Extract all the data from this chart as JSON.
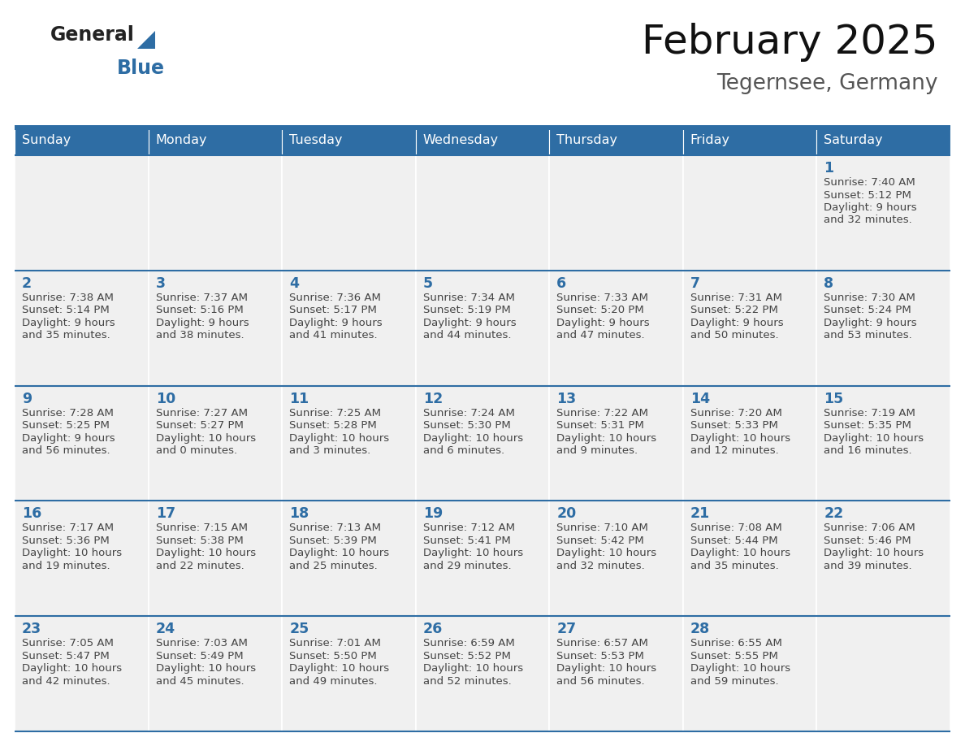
{
  "title": "February 2025",
  "subtitle": "Tegernsee, Germany",
  "days_of_week": [
    "Sunday",
    "Monday",
    "Tuesday",
    "Wednesday",
    "Thursday",
    "Friday",
    "Saturday"
  ],
  "header_bg": "#2E6DA4",
  "header_text": "#FFFFFF",
  "cell_bg": "#F0F0F0",
  "border_color": "#2E6DA4",
  "day_num_color": "#2E6DA4",
  "info_color": "#444444",
  "logo_general_color": "#222222",
  "logo_blue_color": "#2E6DA4",
  "title_color": "#111111",
  "subtitle_color": "#555555",
  "calendar": [
    [
      null,
      null,
      null,
      null,
      null,
      null,
      {
        "day": 1,
        "sunrise": "7:40 AM",
        "sunset": "5:12 PM",
        "daylight": "9 hours",
        "daylight2": "and 32 minutes."
      }
    ],
    [
      {
        "day": 2,
        "sunrise": "7:38 AM",
        "sunset": "5:14 PM",
        "daylight": "9 hours",
        "daylight2": "and 35 minutes."
      },
      {
        "day": 3,
        "sunrise": "7:37 AM",
        "sunset": "5:16 PM",
        "daylight": "9 hours",
        "daylight2": "and 38 minutes."
      },
      {
        "day": 4,
        "sunrise": "7:36 AM",
        "sunset": "5:17 PM",
        "daylight": "9 hours",
        "daylight2": "and 41 minutes."
      },
      {
        "day": 5,
        "sunrise": "7:34 AM",
        "sunset": "5:19 PM",
        "daylight": "9 hours",
        "daylight2": "and 44 minutes."
      },
      {
        "day": 6,
        "sunrise": "7:33 AM",
        "sunset": "5:20 PM",
        "daylight": "9 hours",
        "daylight2": "and 47 minutes."
      },
      {
        "day": 7,
        "sunrise": "7:31 AM",
        "sunset": "5:22 PM",
        "daylight": "9 hours",
        "daylight2": "and 50 minutes."
      },
      {
        "day": 8,
        "sunrise": "7:30 AM",
        "sunset": "5:24 PM",
        "daylight": "9 hours",
        "daylight2": "and 53 minutes."
      }
    ],
    [
      {
        "day": 9,
        "sunrise": "7:28 AM",
        "sunset": "5:25 PM",
        "daylight": "9 hours",
        "daylight2": "and 56 minutes."
      },
      {
        "day": 10,
        "sunrise": "7:27 AM",
        "sunset": "5:27 PM",
        "daylight": "10 hours",
        "daylight2": "and 0 minutes."
      },
      {
        "day": 11,
        "sunrise": "7:25 AM",
        "sunset": "5:28 PM",
        "daylight": "10 hours",
        "daylight2": "and 3 minutes."
      },
      {
        "day": 12,
        "sunrise": "7:24 AM",
        "sunset": "5:30 PM",
        "daylight": "10 hours",
        "daylight2": "and 6 minutes."
      },
      {
        "day": 13,
        "sunrise": "7:22 AM",
        "sunset": "5:31 PM",
        "daylight": "10 hours",
        "daylight2": "and 9 minutes."
      },
      {
        "day": 14,
        "sunrise": "7:20 AM",
        "sunset": "5:33 PM",
        "daylight": "10 hours",
        "daylight2": "and 12 minutes."
      },
      {
        "day": 15,
        "sunrise": "7:19 AM",
        "sunset": "5:35 PM",
        "daylight": "10 hours",
        "daylight2": "and 16 minutes."
      }
    ],
    [
      {
        "day": 16,
        "sunrise": "7:17 AM",
        "sunset": "5:36 PM",
        "daylight": "10 hours",
        "daylight2": "and 19 minutes."
      },
      {
        "day": 17,
        "sunrise": "7:15 AM",
        "sunset": "5:38 PM",
        "daylight": "10 hours",
        "daylight2": "and 22 minutes."
      },
      {
        "day": 18,
        "sunrise": "7:13 AM",
        "sunset": "5:39 PM",
        "daylight": "10 hours",
        "daylight2": "and 25 minutes."
      },
      {
        "day": 19,
        "sunrise": "7:12 AM",
        "sunset": "5:41 PM",
        "daylight": "10 hours",
        "daylight2": "and 29 minutes."
      },
      {
        "day": 20,
        "sunrise": "7:10 AM",
        "sunset": "5:42 PM",
        "daylight": "10 hours",
        "daylight2": "and 32 minutes."
      },
      {
        "day": 21,
        "sunrise": "7:08 AM",
        "sunset": "5:44 PM",
        "daylight": "10 hours",
        "daylight2": "and 35 minutes."
      },
      {
        "day": 22,
        "sunrise": "7:06 AM",
        "sunset": "5:46 PM",
        "daylight": "10 hours",
        "daylight2": "and 39 minutes."
      }
    ],
    [
      {
        "day": 23,
        "sunrise": "7:05 AM",
        "sunset": "5:47 PM",
        "daylight": "10 hours",
        "daylight2": "and 42 minutes."
      },
      {
        "day": 24,
        "sunrise": "7:03 AM",
        "sunset": "5:49 PM",
        "daylight": "10 hours",
        "daylight2": "and 45 minutes."
      },
      {
        "day": 25,
        "sunrise": "7:01 AM",
        "sunset": "5:50 PM",
        "daylight": "10 hours",
        "daylight2": "and 49 minutes."
      },
      {
        "day": 26,
        "sunrise": "6:59 AM",
        "sunset": "5:52 PM",
        "daylight": "10 hours",
        "daylight2": "and 52 minutes."
      },
      {
        "day": 27,
        "sunrise": "6:57 AM",
        "sunset": "5:53 PM",
        "daylight": "10 hours",
        "daylight2": "and 56 minutes."
      },
      {
        "day": 28,
        "sunrise": "6:55 AM",
        "sunset": "5:55 PM",
        "daylight": "10 hours",
        "daylight2": "and 59 minutes."
      },
      null
    ]
  ]
}
